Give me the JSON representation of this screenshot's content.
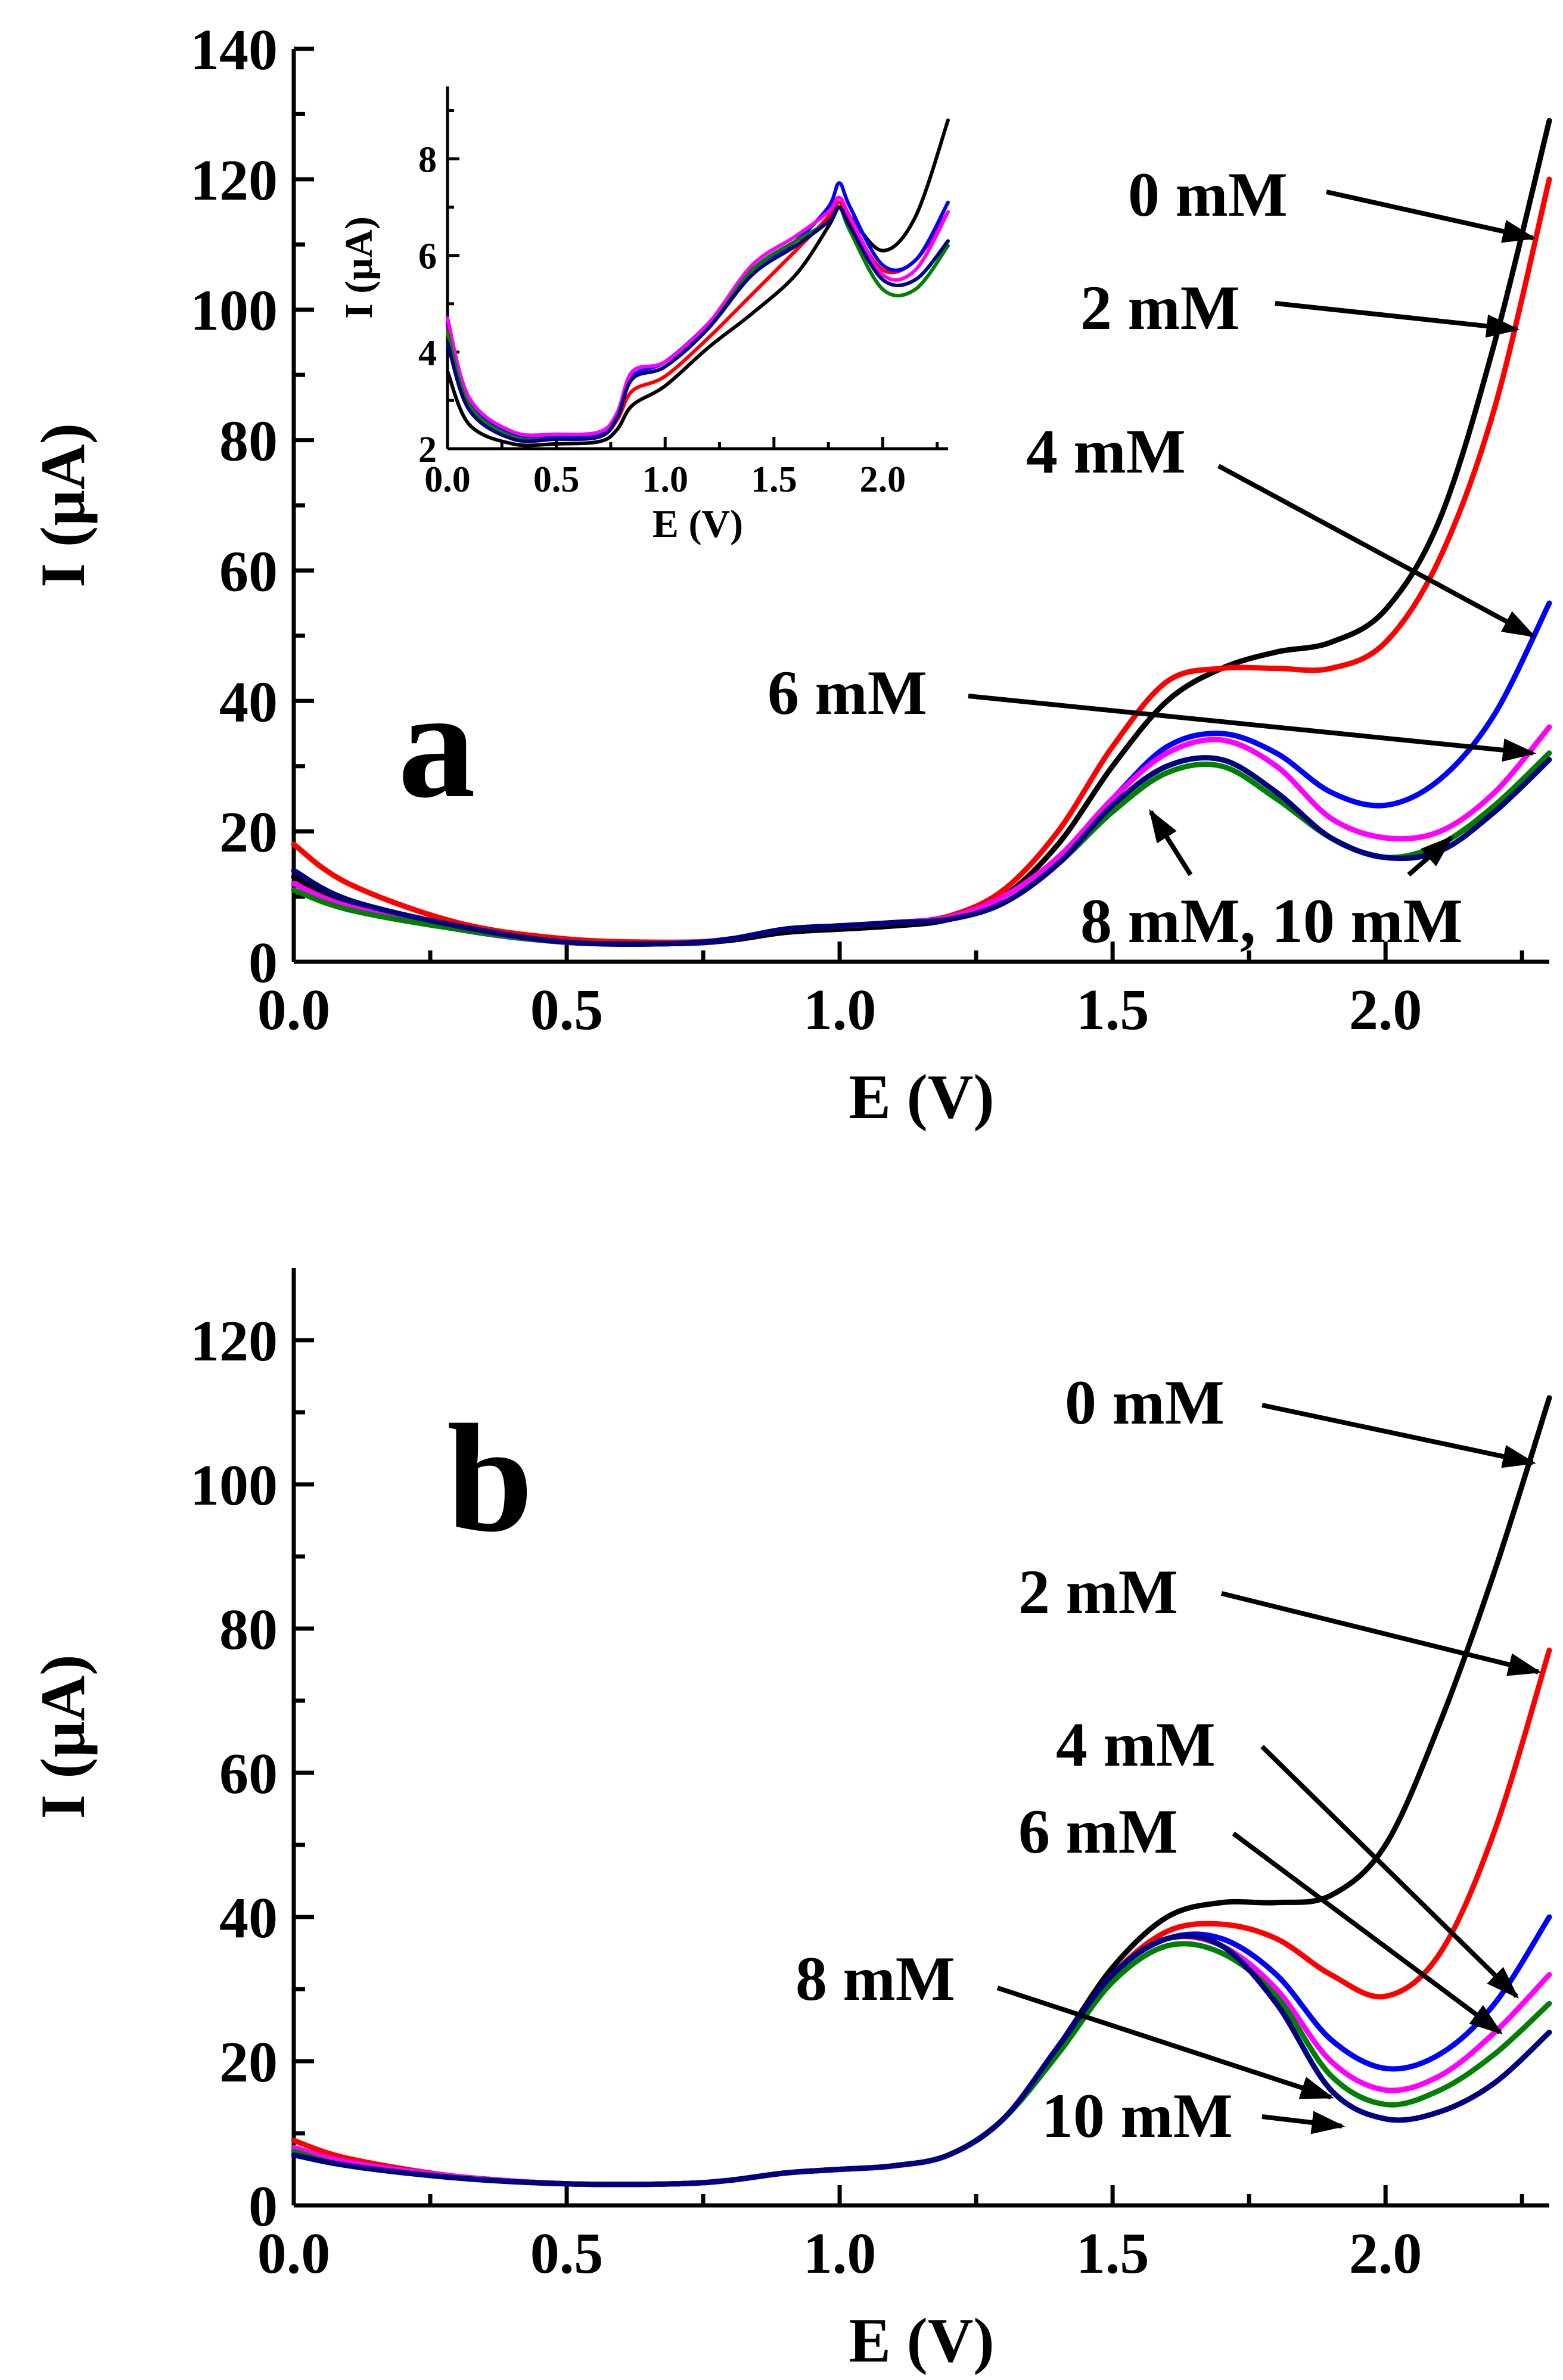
{
  "chart_data": [
    {
      "id": "a",
      "type": "line",
      "panel_label": "a",
      "xlabel": "E (V)",
      "ylabel": "I (µA)",
      "xlim": [
        0,
        2.3
      ],
      "ylim": [
        0,
        140
      ],
      "xticks": [
        0.0,
        0.5,
        1.0,
        1.5,
        2.0
      ],
      "xtick_labels": [
        "0.0",
        "0.5",
        "1.0",
        "1.5",
        "2.0"
      ],
      "yticks": [
        0,
        20,
        40,
        60,
        80,
        100,
        120,
        140
      ],
      "ytick_labels": [
        "0",
        "20",
        "40",
        "60",
        "80",
        "100",
        "120",
        "140"
      ],
      "series": [
        {
          "name": "0 mM",
          "color": "#000000",
          "x": [
            0,
            0.1,
            0.3,
            0.5,
            0.7,
            0.8,
            0.9,
            1.0,
            1.1,
            1.2,
            1.3,
            1.4,
            1.5,
            1.6,
            1.7,
            1.8,
            1.9,
            2.0,
            2.1,
            2.2,
            2.3
          ],
          "y": [
            13,
            9,
            5,
            3,
            2.8,
            3.3,
            4.5,
            5,
            5.5,
            6.5,
            10,
            18,
            30,
            40,
            45,
            47.5,
            49,
            54,
            68,
            95,
            129
          ]
        },
        {
          "name": "2 mM",
          "color": "#ff0000",
          "x": [
            0,
            0.1,
            0.3,
            0.5,
            0.7,
            0.8,
            0.9,
            1.0,
            1.1,
            1.2,
            1.3,
            1.4,
            1.5,
            1.6,
            1.7,
            1.8,
            1.9,
            2.0,
            2.1,
            2.2,
            2.3
          ],
          "y": [
            18,
            12,
            6,
            3.5,
            3,
            3.5,
            5,
            5.5,
            6,
            7,
            11,
            20,
            33,
            43,
            45,
            45,
            45,
            49,
            62,
            85,
            120
          ]
        },
        {
          "name": "4 mM",
          "color": "#0000ff",
          "x": [
            0,
            0.1,
            0.3,
            0.5,
            0.7,
            0.8,
            0.9,
            1.0,
            1.1,
            1.2,
            1.3,
            1.4,
            1.5,
            1.6,
            1.7,
            1.8,
            1.9,
            2.0,
            2.1,
            2.2,
            2.3
          ],
          "y": [
            12,
            8.5,
            5,
            3,
            2.8,
            3.5,
            5,
            5.5,
            6,
            6.8,
            10,
            16,
            25,
            33,
            35,
            32,
            26,
            24,
            28,
            38,
            55
          ]
        },
        {
          "name": "6 mM",
          "color": "#ff00ff",
          "x": [
            0,
            0.1,
            0.3,
            0.5,
            0.7,
            0.8,
            0.9,
            1.0,
            1.1,
            1.2,
            1.3,
            1.4,
            1.5,
            1.6,
            1.7,
            1.8,
            1.9,
            2.0,
            2.1,
            2.2,
            2.3
          ],
          "y": [
            12,
            8.5,
            5,
            3,
            2.8,
            3.5,
            5,
            5.5,
            6,
            6.8,
            10,
            16,
            25,
            32,
            34,
            30,
            22,
            19,
            20,
            26,
            36
          ]
        },
        {
          "name": "8 mM",
          "color": "#008000",
          "x": [
            0,
            0.1,
            0.3,
            0.5,
            0.7,
            0.8,
            0.9,
            1.0,
            1.1,
            1.2,
            1.3,
            1.4,
            1.5,
            1.6,
            1.7,
            1.8,
            1.9,
            2.0,
            2.1,
            2.2,
            2.3
          ],
          "y": [
            11,
            8,
            5,
            3,
            2.8,
            3.5,
            5,
            5.5,
            6,
            6.5,
            9,
            15,
            23,
            29,
            30,
            25,
            19,
            16,
            18,
            24,
            32
          ]
        },
        {
          "name": "10 mM",
          "color": "#000080",
          "x": [
            0,
            0.1,
            0.3,
            0.5,
            0.7,
            0.8,
            0.9,
            1.0,
            1.1,
            1.2,
            1.3,
            1.4,
            1.5,
            1.6,
            1.7,
            1.8,
            1.9,
            2.0,
            2.1,
            2.2,
            2.3
          ],
          "y": [
            14,
            9.5,
            5.5,
            3,
            2.8,
            3.5,
            5,
            5.5,
            6,
            6.5,
            9,
            15,
            24,
            30,
            31,
            26,
            19,
            16,
            17,
            23,
            31
          ]
        }
      ],
      "annotations": [
        {
          "text": "0 mM",
          "target_x": 2.27,
          "target_y": 111
        },
        {
          "text": "2 mM",
          "target_x": 2.24,
          "target_y": 97
        },
        {
          "text": "4 mM",
          "target_x": 2.27,
          "target_y": 50
        },
        {
          "text": "6 mM",
          "target_x": 2.27,
          "target_y": 32
        },
        {
          "text": "8 mM, 10 mM",
          "target_x": 1.57,
          "target_y": 23,
          "target2_x": 2.12,
          "target2_y": 19
        }
      ],
      "inset": {
        "type": "line",
        "xlabel": "E (V)",
        "ylabel": "I (µA)",
        "xlim": [
          0,
          2.3
        ],
        "ylim": [
          2,
          9.5
        ],
        "xticks": [
          0.0,
          0.5,
          1.0,
          1.5,
          2.0
        ],
        "xtick_labels": [
          "0.0",
          "0.5",
          "1.0",
          "1.5",
          "2.0"
        ],
        "yticks": [
          2,
          4,
          6,
          8
        ],
        "ytick_labels": [
          "2",
          "4",
          "6",
          "8"
        ],
        "series": [
          {
            "name": "0 mM",
            "color": "#000000",
            "x": [
              0,
              0.1,
              0.3,
              0.5,
              0.7,
              0.78,
              0.85,
              1.0,
              1.2,
              1.4,
              1.6,
              1.75,
              1.8,
              1.85,
              2.0,
              2.15,
              2.3
            ],
            "y": [
              3.6,
              2.5,
              2.1,
              2.1,
              2.15,
              2.4,
              2.9,
              3.3,
              4.1,
              4.8,
              5.6,
              6.6,
              7.0,
              6.8,
              6.1,
              6.8,
              8.8
            ]
          },
          {
            "name": "2 mM",
            "color": "#ff0000",
            "x": [
              0,
              0.1,
              0.3,
              0.5,
              0.7,
              0.78,
              0.85,
              1.0,
              1.2,
              1.4,
              1.6,
              1.75,
              1.8,
              1.85,
              2.0,
              2.15,
              2.3
            ],
            "y": [
              4.5,
              2.9,
              2.25,
              2.2,
              2.25,
              2.6,
              3.2,
              3.5,
              4.3,
              5.2,
              6.1,
              6.8,
              7.1,
              6.7,
              5.7,
              5.9,
              6.9
            ]
          },
          {
            "name": "4 mM",
            "color": "#0000ff",
            "x": [
              0,
              0.1,
              0.3,
              0.5,
              0.7,
              0.78,
              0.85,
              1.0,
              1.2,
              1.4,
              1.6,
              1.75,
              1.8,
              1.85,
              2.0,
              2.15,
              2.3
            ],
            "y": [
              4.6,
              3.0,
              2.3,
              2.25,
              2.3,
              2.7,
              3.5,
              3.8,
              4.6,
              5.7,
              6.3,
              7.0,
              7.5,
              7.0,
              5.8,
              5.9,
              7.1
            ]
          },
          {
            "name": "6 mM",
            "color": "#ff00ff",
            "x": [
              0,
              0.1,
              0.3,
              0.5,
              0.7,
              0.78,
              0.85,
              1.0,
              1.2,
              1.4,
              1.6,
              1.75,
              1.8,
              1.85,
              2.0,
              2.15,
              2.3
            ],
            "y": [
              4.7,
              3.05,
              2.35,
              2.3,
              2.35,
              2.75,
              3.6,
              3.8,
              4.6,
              5.8,
              6.4,
              6.9,
              7.2,
              6.8,
              5.6,
              5.7,
              6.9
            ]
          },
          {
            "name": "8 mM",
            "color": "#008000",
            "x": [
              0,
              0.1,
              0.3,
              0.5,
              0.7,
              0.78,
              0.85,
              1.0,
              1.2,
              1.4,
              1.6,
              1.75,
              1.8,
              1.85,
              2.0,
              2.15,
              2.3
            ],
            "y": [
              4.4,
              2.9,
              2.25,
              2.2,
              2.25,
              2.65,
              3.45,
              3.7,
              4.5,
              5.7,
              6.3,
              6.7,
              7.0,
              6.5,
              5.3,
              5.3,
              6.2
            ]
          },
          {
            "name": "10 mM",
            "color": "#000080",
            "x": [
              0,
              0.1,
              0.3,
              0.5,
              0.7,
              0.78,
              0.85,
              1.0,
              1.2,
              1.4,
              1.6,
              1.75,
              1.8,
              1.85,
              2.0,
              2.15,
              2.3
            ],
            "y": [
              4.2,
              2.8,
              2.2,
              2.2,
              2.25,
              2.65,
              3.45,
              3.7,
              4.5,
              5.6,
              6.2,
              6.7,
              7.0,
              6.6,
              5.5,
              5.5,
              6.3
            ]
          }
        ]
      }
    },
    {
      "id": "b",
      "type": "line",
      "panel_label": "b",
      "xlabel": "E (V)",
      "ylabel": "I (µA)",
      "xlim": [
        0,
        2.3
      ],
      "ylim": [
        0,
        130
      ],
      "xticks": [
        0.0,
        0.5,
        1.0,
        1.5,
        2.0
      ],
      "xtick_labels": [
        "0.0",
        "0.5",
        "1.0",
        "1.5",
        "2.0"
      ],
      "yticks": [
        0,
        20,
        40,
        60,
        80,
        100,
        120
      ],
      "ytick_labels": [
        "0",
        "20",
        "40",
        "60",
        "80",
        "100",
        "120"
      ],
      "series": [
        {
          "name": "0 mM",
          "color": "#000000",
          "x": [
            0,
            0.1,
            0.3,
            0.5,
            0.7,
            0.8,
            0.9,
            1.0,
            1.1,
            1.2,
            1.3,
            1.4,
            1.5,
            1.6,
            1.7,
            1.8,
            1.9,
            2.0,
            2.1,
            2.2,
            2.3
          ],
          "y": [
            8,
            6,
            4,
            3,
            3,
            3.5,
            4.5,
            5,
            5.5,
            7,
            12,
            22,
            33,
            40,
            42,
            42,
            43,
            50,
            67,
            88,
            112
          ]
        },
        {
          "name": "2 mM",
          "color": "#ff0000",
          "x": [
            0,
            0.1,
            0.3,
            0.5,
            0.7,
            0.8,
            0.9,
            1.0,
            1.1,
            1.2,
            1.3,
            1.4,
            1.5,
            1.6,
            1.7,
            1.8,
            1.9,
            2.0,
            2.1,
            2.2,
            2.3
          ],
          "y": [
            9,
            6.5,
            4,
            3,
            3,
            3.5,
            4.5,
            5,
            5.5,
            7,
            12,
            22,
            32,
            38,
            39,
            37,
            32,
            29,
            35,
            52,
            77
          ]
        },
        {
          "name": "4 mM",
          "color": "#0000ff",
          "x": [
            0,
            0.1,
            0.3,
            0.5,
            0.7,
            0.8,
            0.9,
            1.0,
            1.1,
            1.2,
            1.3,
            1.4,
            1.5,
            1.6,
            1.7,
            1.8,
            1.9,
            2.0,
            2.1,
            2.2,
            2.3
          ],
          "y": [
            8,
            6,
            4,
            3,
            3,
            3.5,
            4.5,
            5,
            5.5,
            7,
            12,
            22,
            32,
            37,
            37,
            32,
            23,
            19,
            21,
            28,
            40
          ]
        },
        {
          "name": "6 mM",
          "color": "#ff00ff",
          "x": [
            0,
            0.1,
            0.3,
            0.5,
            0.7,
            0.8,
            0.9,
            1.0,
            1.1,
            1.2,
            1.3,
            1.4,
            1.5,
            1.6,
            1.7,
            1.8,
            1.9,
            2.0,
            2.1,
            2.2,
            2.3
          ],
          "y": [
            8,
            6,
            4,
            3,
            3,
            3.5,
            4.5,
            5,
            5.5,
            7,
            12,
            22,
            32,
            37,
            36,
            30,
            20,
            16,
            18,
            24,
            32
          ]
        },
        {
          "name": "8 mM",
          "color": "#008000",
          "x": [
            0,
            0.1,
            0.3,
            0.5,
            0.7,
            0.8,
            0.9,
            1.0,
            1.1,
            1.2,
            1.3,
            1.4,
            1.5,
            1.6,
            1.7,
            1.8,
            1.9,
            2.0,
            2.1,
            2.2,
            2.3
          ],
          "y": [
            7.5,
            5.5,
            3.8,
            3,
            3,
            3.5,
            4.5,
            5,
            5.5,
            7,
            12,
            21,
            31,
            36,
            35,
            29,
            18,
            14,
            16,
            21,
            28
          ]
        },
        {
          "name": "10 mM",
          "color": "#000080",
          "x": [
            0,
            0.1,
            0.3,
            0.5,
            0.7,
            0.8,
            0.9,
            1.0,
            1.1,
            1.2,
            1.3,
            1.4,
            1.5,
            1.6,
            1.7,
            1.8,
            1.9,
            2.0,
            2.1,
            2.2,
            2.3
          ],
          "y": [
            7,
            5.5,
            3.8,
            3,
            3,
            3.5,
            4.5,
            5,
            5.5,
            7,
            12,
            22,
            32,
            37,
            36,
            28,
            16,
            12,
            13,
            17,
            24
          ]
        }
      ],
      "annotations": [
        {
          "text": "0 mM",
          "target_x": 2.27,
          "target_y": 103
        },
        {
          "text": "2 mM",
          "target_x": 2.28,
          "target_y": 74
        },
        {
          "text": "4 mM",
          "target_x": 2.24,
          "target_y": 29
        },
        {
          "text": "6 mM",
          "target_x": 2.21,
          "target_y": 24
        },
        {
          "text": "8 mM",
          "target_x": 1.9,
          "target_y": 15
        },
        {
          "text": "10 mM",
          "target_x": 1.92,
          "target_y": 11
        }
      ]
    }
  ]
}
